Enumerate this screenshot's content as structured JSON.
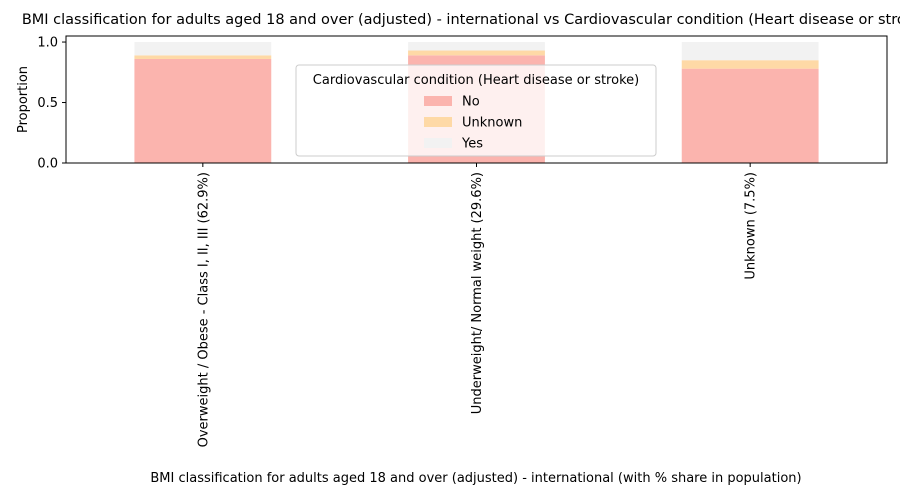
{
  "chart_data": {
    "type": "bar",
    "stacked": true,
    "title": "BMI classification for adults aged 18 and over (adjusted) - international vs Cardiovascular condition (Heart disease or stroke)",
    "xlabel": "BMI classification for adults aged 18 and over (adjusted) - international (with % share in population)",
    "ylabel": "Proportion",
    "ylim": [
      0,
      1.05
    ],
    "yticks": [
      0.0,
      0.5,
      1.0
    ],
    "ytick_labels": [
      "0.0",
      "0.5",
      "1.0"
    ],
    "categories": [
      "Overweight / Obese - Class I, II, III (62.9%)",
      "Underweight/ Normal weight (29.6%)",
      "Unknown (7.5%)"
    ],
    "series": [
      {
        "name": "No",
        "color": "#fbb4ae",
        "values": [
          0.86,
          0.89,
          0.78
        ]
      },
      {
        "name": "Unknown",
        "color": "#fed9a6",
        "values": [
          0.03,
          0.04,
          0.07
        ]
      },
      {
        "name": "Yes",
        "color": "#f2f2f2",
        "values": [
          0.11,
          0.07,
          0.15
        ]
      }
    ],
    "legend": {
      "title": "Cardiovascular condition (Heart disease or stroke)",
      "placement": "upper-center"
    },
    "grid": false
  }
}
